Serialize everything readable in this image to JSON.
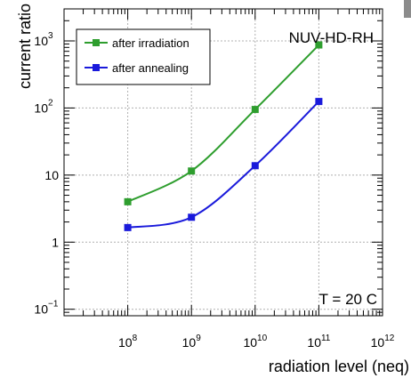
{
  "chart_data": {
    "type": "line",
    "title": "NUV-HD-RH",
    "annotation": "T = 20 C",
    "xlabel": "radiation level (neq)",
    "ylabel": "current ratio",
    "x_scale": "log",
    "y_scale": "log",
    "xlim": [
      10000000,
      1000000000000
    ],
    "ylim": [
      0.08,
      3000
    ],
    "grid": true,
    "legend_position": "top-left",
    "x": [
      100000000,
      1000000000,
      10000000000,
      100000000000
    ],
    "x_ticks": [
      {
        "value": 100000000,
        "base": "10",
        "exp": "8"
      },
      {
        "value": 1000000000,
        "base": "10",
        "exp": "9"
      },
      {
        "value": 10000000000,
        "base": "10",
        "exp": "10"
      },
      {
        "value": 100000000000,
        "base": "10",
        "exp": "11"
      },
      {
        "value": 1000000000000,
        "base": "10",
        "exp": "12"
      }
    ],
    "y_ticks": [
      {
        "value": 0.1,
        "base": "10",
        "exp": "−1"
      },
      {
        "value": 1,
        "base": "1",
        "exp": ""
      },
      {
        "value": 10,
        "base": "10",
        "exp": ""
      },
      {
        "value": 100,
        "base": "10",
        "exp": "2"
      },
      {
        "value": 1000,
        "base": "10",
        "exp": "3"
      }
    ],
    "series": [
      {
        "name": "after irradiation",
        "color": "#2e9e2e",
        "values": [
          4,
          11.5,
          95,
          870
        ]
      },
      {
        "name": "after annealing",
        "color": "#1a1adb",
        "values": [
          1.65,
          2.35,
          13.8,
          125
        ]
      }
    ]
  }
}
